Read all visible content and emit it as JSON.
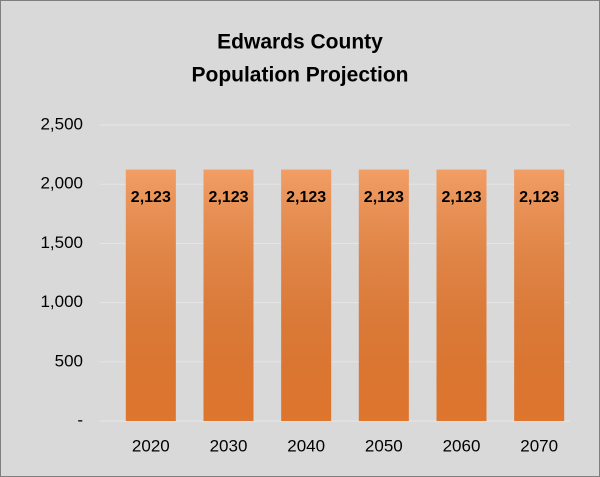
{
  "chart_data": {
    "type": "bar",
    "title": [
      "Edwards County",
      "Population Projection"
    ],
    "categories": [
      "2020",
      "2030",
      "2040",
      "2050",
      "2060",
      "2070"
    ],
    "values": [
      2123,
      2123,
      2123,
      2123,
      2123,
      2123
    ],
    "value_labels": [
      "2,123",
      "2,123",
      "2,123",
      "2,123",
      "2,123",
      "2,123"
    ],
    "color": "#ed7d31",
    "ylim": [
      0,
      2500
    ],
    "yticks": [
      {
        "value": 0,
        "label": "-"
      },
      500,
      {
        "value": 1000,
        "label": "1,000"
      },
      {
        "value": 1500,
        "label": "1,500"
      },
      {
        "value": 2000,
        "label": "2,000"
      },
      {
        "value": 2500,
        "label": "2,500"
      }
    ],
    "grid": true
  }
}
